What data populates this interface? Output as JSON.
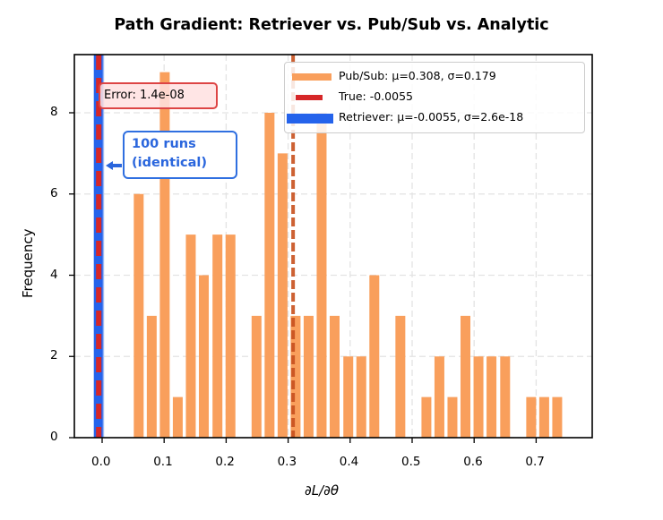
{
  "chart_data": {
    "type": "bar",
    "title": "Path Gradient: Retriever vs. Pub/Sub vs. Analytic",
    "xlabel": "∂L/∂θ",
    "ylabel": "Frequency",
    "xlim": [
      -0.045,
      0.79
    ],
    "ylim": [
      0,
      9.45
    ],
    "xticks": [
      "0.0",
      "0.1",
      "0.2",
      "0.3",
      "0.4",
      "0.5",
      "0.6",
      "0.7"
    ],
    "xtick_values": [
      0.0,
      0.1,
      0.2,
      0.3,
      0.4,
      0.5,
      0.6,
      0.7
    ],
    "yticks": [
      "0",
      "2",
      "4",
      "6",
      "8"
    ],
    "ytick_values": [
      0,
      2,
      4,
      6,
      8
    ],
    "grid": true,
    "legend_position": "upper right",
    "series": [
      {
        "name": "Pub/Sub: μ=0.308, σ=0.179",
        "kind": "histogram",
        "color": "#f99f5c",
        "bin_width": 0.0211,
        "bin_centers": [
          0.059,
          0.08,
          0.101,
          0.122,
          0.143,
          0.164,
          0.186,
          0.207,
          0.228,
          0.249,
          0.27,
          0.291,
          0.312,
          0.333,
          0.354,
          0.375,
          0.397,
          0.418,
          0.439,
          0.46,
          0.481,
          0.502,
          0.523,
          0.544,
          0.565,
          0.586,
          0.607,
          0.628,
          0.65,
          0.671,
          0.692,
          0.713,
          0.734
        ],
        "values": [
          6,
          3,
          9,
          1,
          5,
          4,
          5,
          5,
          0,
          3,
          8,
          7,
          3,
          3,
          8,
          3,
          2,
          2,
          4,
          0,
          3,
          0,
          1,
          2,
          1,
          3,
          2,
          2,
          2,
          0,
          1,
          1,
          1
        ]
      },
      {
        "name": "True: -0.0055",
        "kind": "vline",
        "color": "#d62728",
        "style": "dashed",
        "x": -0.0055
      },
      {
        "name": "Retriever: μ=-0.0055, σ=2.6e-18",
        "kind": "vline",
        "color": "#2563eb",
        "style": "solid",
        "x": -0.0055
      },
      {
        "name": "Pub/Sub mean",
        "kind": "vline",
        "color": "#c8501e",
        "style": "dashed",
        "x": 0.308
      }
    ],
    "annotations": [
      {
        "text": "Error: 1.4e-08"
      },
      {
        "text": "100 runs\n(identical)"
      }
    ]
  },
  "title": "Path Gradient: Retriever vs. Pub/Sub vs. Analytic",
  "axes": {
    "xlabel": "∂L/∂θ",
    "ylabel": "Frequency"
  },
  "legend": {
    "items": [
      {
        "label": "Pub/Sub: μ=0.308, σ=0.179",
        "color": "#f99f5c",
        "kind": "bar"
      },
      {
        "label": "True: -0.0055",
        "color": "#d62728",
        "kind": "dash"
      },
      {
        "label": "Retriever: μ=-0.0055, σ=2.6e-18",
        "color": "#2563eb",
        "kind": "thick"
      }
    ]
  },
  "annotations": {
    "error": "Error: 1.4e-08",
    "runs_line1": "100 runs",
    "runs_line2": "(identical)"
  }
}
